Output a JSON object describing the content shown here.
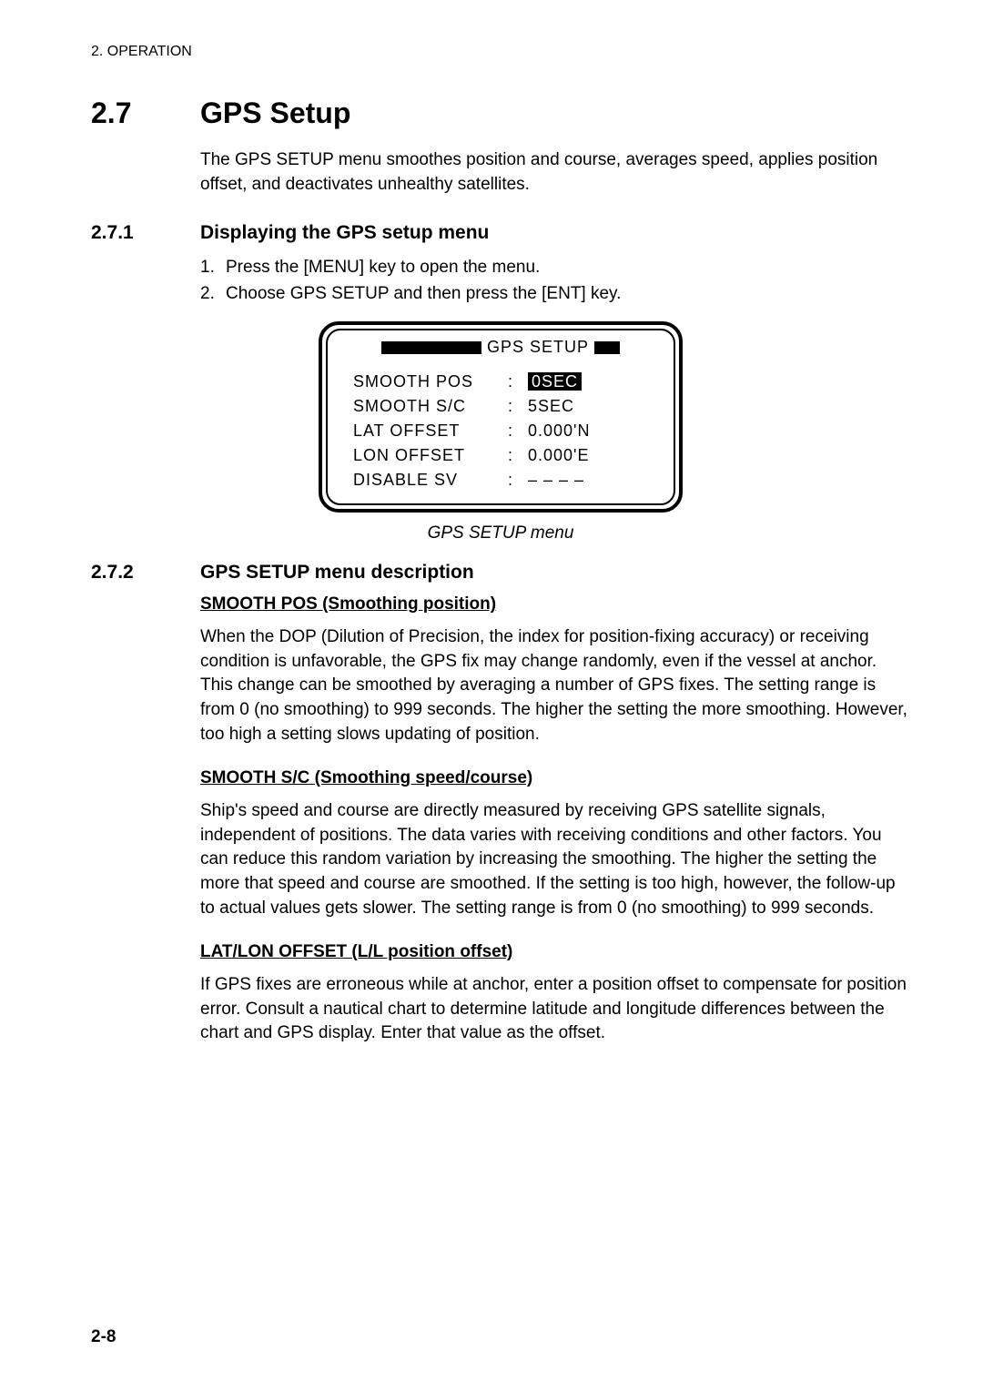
{
  "header": "2. OPERATION",
  "main": {
    "number": "2.7",
    "title": "GPS Setup",
    "intro": "The GPS SETUP menu smoothes position and course, averages speed, applies position offset, and deactivates unhealthy satellites."
  },
  "sub1": {
    "number": "2.7.1",
    "title": "Displaying the GPS setup menu",
    "steps": [
      {
        "n": "1.",
        "t": "Press the [MENU] key to open the menu."
      },
      {
        "n": "2.",
        "t": "Choose GPS SETUP and then press the [ENT] key."
      }
    ]
  },
  "lcd": {
    "title": "GPS SETUP",
    "rows": [
      {
        "label": "SMOOTH POS",
        "value_pre": "",
        "value_hl": "  0SEC",
        "value_post": ""
      },
      {
        "label": "SMOOTH S/C",
        "value_pre": "   5SEC",
        "value_hl": "",
        "value_post": ""
      },
      {
        "label": "LAT OFFSET",
        "value_pre": " 0.000'N",
        "value_hl": "",
        "value_post": ""
      },
      {
        "label": "LON OFFSET",
        "value_pre": " 0.000'E",
        "value_hl": "",
        "value_post": ""
      },
      {
        "label": "DISABLE SV",
        "value_pre": " – –  – –",
        "value_hl": "",
        "value_post": ""
      }
    ],
    "caption": "GPS SETUP menu"
  },
  "sub2": {
    "number": "2.7.2",
    "title": "GPS SETUP menu description"
  },
  "sections": [
    {
      "heading": "SMOOTH POS (Smoothing position)",
      "body": "When the DOP (Dilution of Precision, the index for position-fixing accuracy) or receiving condition is unfavorable, the GPS fix may change randomly, even if the vessel at anchor. This change can be smoothed by averaging a number of GPS fixes. The setting range is from 0 (no smoothing) to 999 seconds. The higher the setting the more smoothing. However, too high a setting slows updating of position."
    },
    {
      "heading": "SMOOTH S/C (Smoothing speed/course)",
      "body": "Ship's speed and course are directly measured by receiving GPS satellite signals, independent of positions. The data varies with receiving conditions and other factors. You can reduce this random variation by increasing the smoothing. The higher the setting the more that speed and course are smoothed. If the setting is too high, however, the follow-up to actual values gets slower. The setting range is from 0 (no smoothing) to 999 seconds."
    },
    {
      "heading": "LAT/LON OFFSET (L/L position offset)",
      "body": "If GPS fixes are erroneous while at anchor, enter a position offset to compensate for position error. Consult a nautical chart to determine latitude and longitude differences between the chart and GPS display. Enter that value as the offset."
    }
  ],
  "pagenum": "2-8"
}
